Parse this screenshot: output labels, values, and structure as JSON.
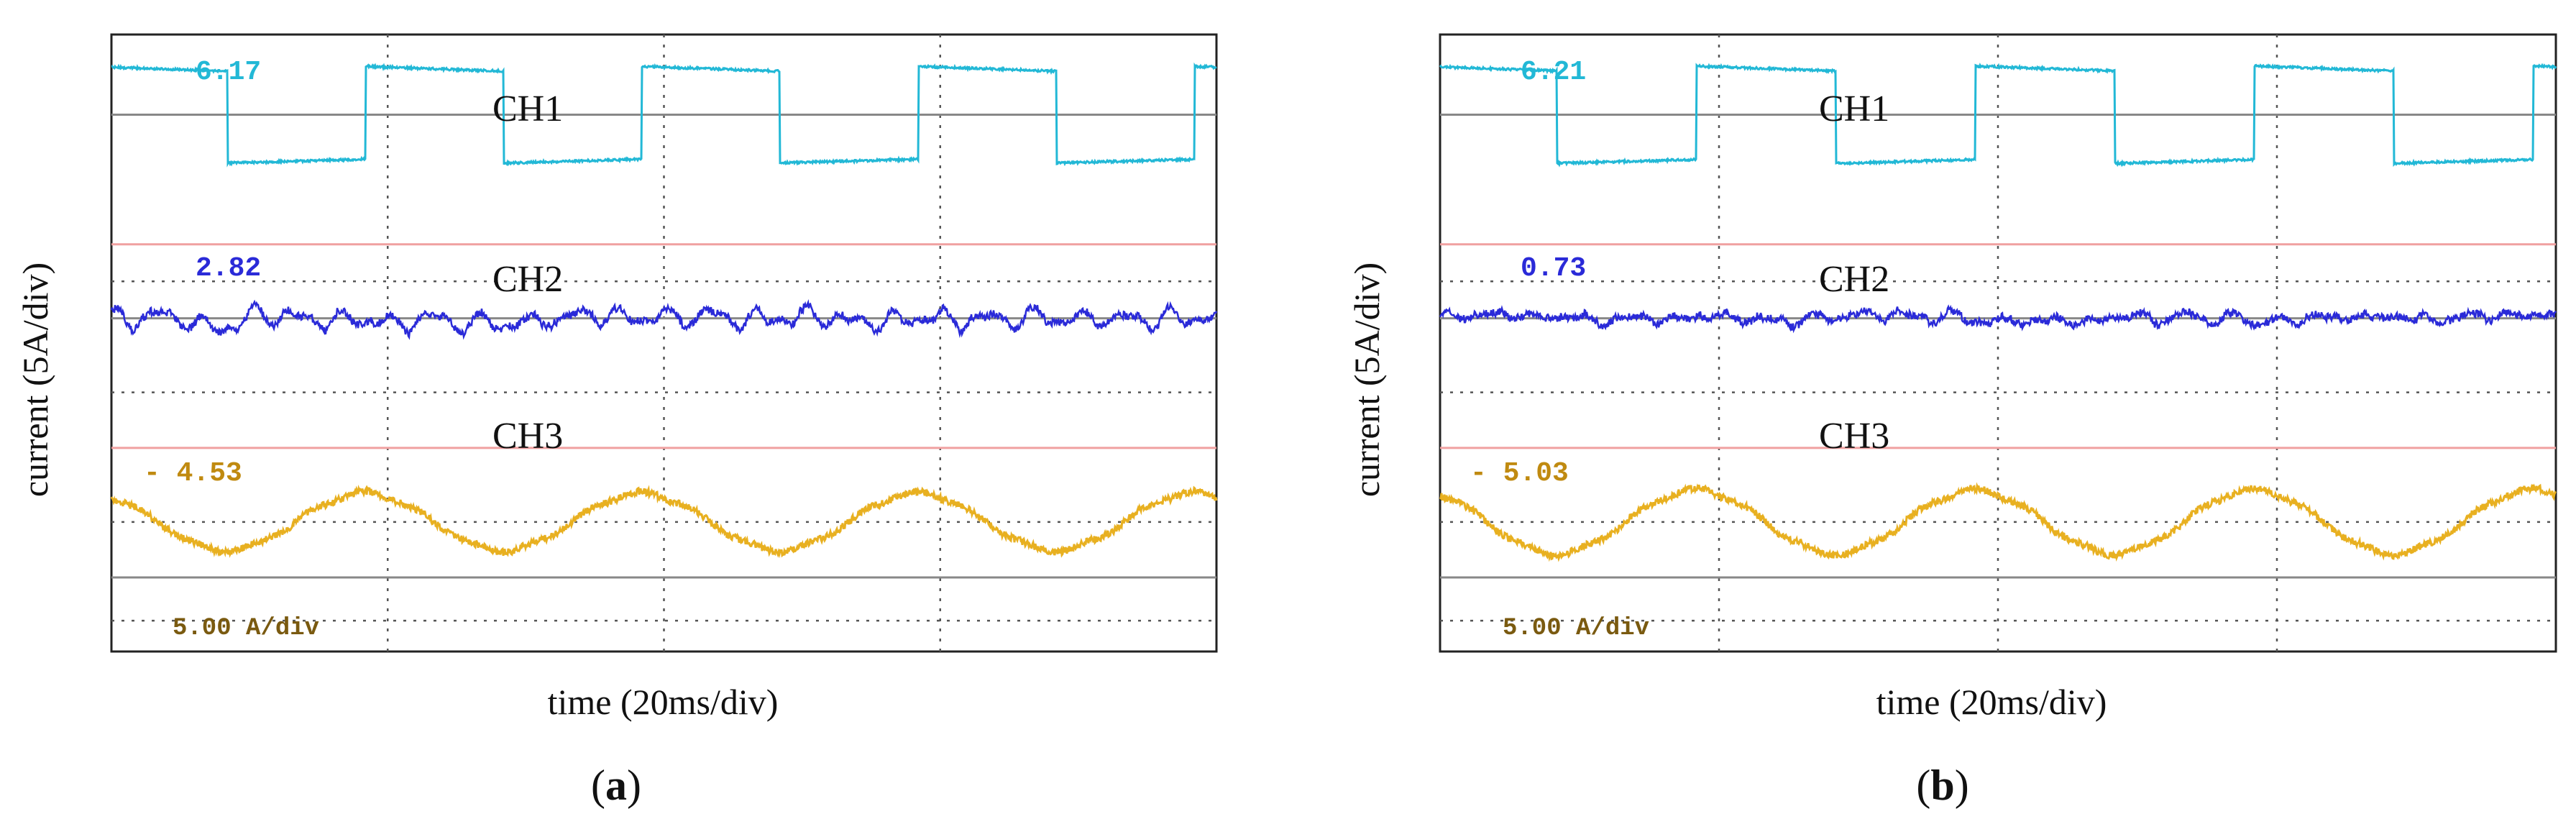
{
  "figure": {
    "panels": [
      {
        "id": "a",
        "caption": "(a)",
        "caption_letter": "a",
        "ylabel": "current (5A/div)",
        "xlabel": "time (20ms/div)",
        "scale_label": "5.00 A/div",
        "channels": [
          {
            "name": "CH1",
            "readout": "6.17",
            "color": "#22b8d6"
          },
          {
            "name": "CH2",
            "readout": "2.82",
            "color": "#2a2ad8"
          },
          {
            "name": "CH3",
            "readout": "- 4.53",
            "color": "#e8b020"
          }
        ]
      },
      {
        "id": "b",
        "caption": "(b)",
        "caption_letter": "b",
        "ylabel": "current (5A/div)",
        "xlabel": "time (20ms/div)",
        "scale_label": "5.00 A/div",
        "channels": [
          {
            "name": "CH1",
            "readout": "6.21",
            "color": "#22b8d6"
          },
          {
            "name": "CH2",
            "readout": "0.73",
            "color": "#2a2ad8"
          },
          {
            "name": "CH3",
            "readout": "- 5.03",
            "color": "#e8b020"
          }
        ]
      }
    ]
  },
  "chart_data": [
    {
      "type": "line",
      "title": "(a)",
      "xlabel": "time (20ms/div)",
      "ylabel": "current (5A/div)",
      "x_divisions": 4,
      "x_range_ms": [
        0,
        80
      ],
      "y_unit": "A",
      "grid": true,
      "series": [
        {
          "name": "CH1",
          "readout": 6.17,
          "waveform": "square",
          "amplitude_A": 6.17,
          "frequency_Hz": 50,
          "phase_deg": 270
        },
        {
          "name": "CH2",
          "readout": 2.82,
          "waveform": "noise-ripple",
          "amplitude_A": 2.82
        },
        {
          "name": "CH3",
          "readout": -4.53,
          "waveform": "sine",
          "amplitude_A": 4.53,
          "frequency_Hz": 50,
          "phase_deg": 120
        }
      ]
    },
    {
      "type": "line",
      "title": "(b)",
      "xlabel": "time (20ms/div)",
      "ylabel": "current (5A/div)",
      "x_divisions": 4,
      "x_range_ms": [
        0,
        80
      ],
      "y_unit": "A",
      "grid": true,
      "series": [
        {
          "name": "CH1",
          "readout": 6.21,
          "waveform": "square",
          "amplitude_A": 6.21,
          "frequency_Hz": 50,
          "phase_deg": 270
        },
        {
          "name": "CH2",
          "readout": 0.73,
          "waveform": "noise-ripple",
          "amplitude_A": 0.73
        },
        {
          "name": "CH3",
          "readout": -5.03,
          "waveform": "sine",
          "amplitude_A": 5.03,
          "frequency_Hz": 50,
          "phase_deg": 120
        }
      ]
    }
  ]
}
